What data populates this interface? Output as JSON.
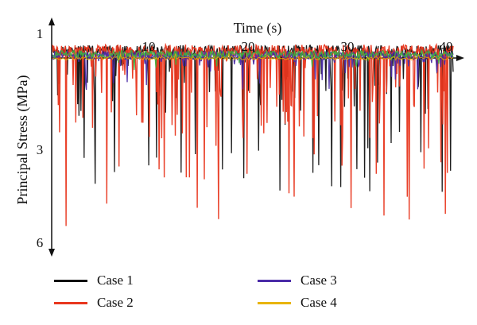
{
  "chart_data": {
    "type": "line",
    "title": "",
    "xlabel": "Time (s)",
    "ylabel": "Principal Stress (MPa)",
    "xlim": [
      0,
      41
    ],
    "x_ticks": [
      10,
      20,
      30,
      40
    ],
    "y_ticks": [
      1,
      3,
      6
    ],
    "grid": false,
    "legend_position": "bottom",
    "series": [
      {
        "name": "Case 1",
        "color": "#111111",
        "baseline": 1.32,
        "spike_depth_max": 4.5
      },
      {
        "name": "Case 2",
        "color": "#e8361e",
        "baseline": 1.32,
        "spike_depth_max": 5.6
      },
      {
        "name": "Case 3",
        "color": "#4b2ca8",
        "baseline": 1.4,
        "spike_depth_max": 2.0
      },
      {
        "name": "Case 4",
        "color": "#e8b400",
        "baseline": 1.45,
        "spike_depth_max": 1.2
      }
    ],
    "extra_series_color": "#3fb13f"
  }
}
